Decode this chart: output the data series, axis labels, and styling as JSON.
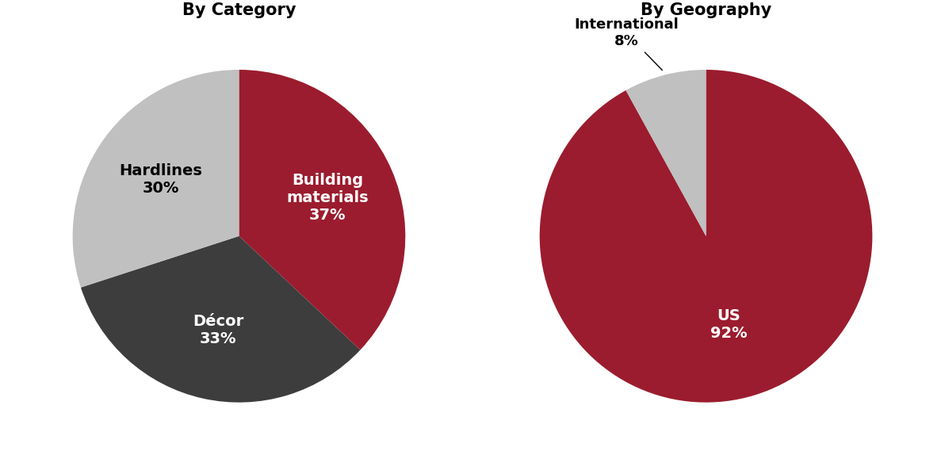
{
  "chart1_title": "By Category",
  "chart1_values": [
    37,
    33,
    30
  ],
  "chart1_labels": [
    "Building\nmaterials\n37%",
    "Décor\n33%",
    "Hardlines\n30%"
  ],
  "chart1_colors": [
    "#9B1C2E",
    "#3D3D3D",
    "#C0C0C0"
  ],
  "chart1_text_colors": [
    "white",
    "white",
    "black"
  ],
  "chart1_startangle": 90,
  "chart2_title": "By Geography",
  "chart2_values": [
    92,
    8
  ],
  "chart2_colors": [
    "#9B1C2E",
    "#C0C0C0"
  ],
  "chart2_startangle": 90,
  "bg_color": "#FFFFFF",
  "title_fontsize": 15,
  "label_fontsize": 14
}
